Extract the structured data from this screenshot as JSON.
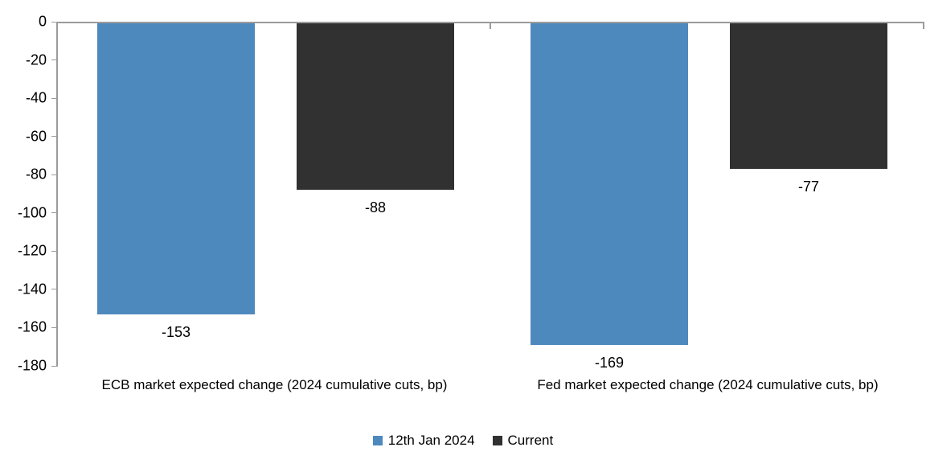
{
  "chart_data": {
    "type": "bar",
    "title": "",
    "xlabel": "",
    "ylabel": "",
    "categories": [
      "ECB market expected change (2024 cumulative cuts, bp)",
      "Fed market expected change (2024 cumulative cuts, bp)"
    ],
    "series": [
      {
        "name": "12th Jan 2024",
        "color": "#4E89BE",
        "values": [
          -153,
          -169
        ]
      },
      {
        "name": "Current",
        "color": "#313131",
        "values": [
          -88,
          -77
        ]
      }
    ],
    "data_labels": [
      [
        "-153",
        "-169"
      ],
      [
        "-88",
        "-77"
      ]
    ],
    "ylim": [
      -180,
      0
    ],
    "y_ticks": [
      "0",
      "-20",
      "-40",
      "-60",
      "-80",
      "-100",
      "-120",
      "-140",
      "-160",
      "-180"
    ],
    "y_tick_values": [
      0,
      -20,
      -40,
      -60,
      -80,
      -100,
      -120,
      -140,
      -160,
      -180
    ],
    "grid": false,
    "legend_position": "bottom",
    "axis_color": "#9B9B9B",
    "text_color": "#000000",
    "background_color": "#FFFFFF"
  }
}
